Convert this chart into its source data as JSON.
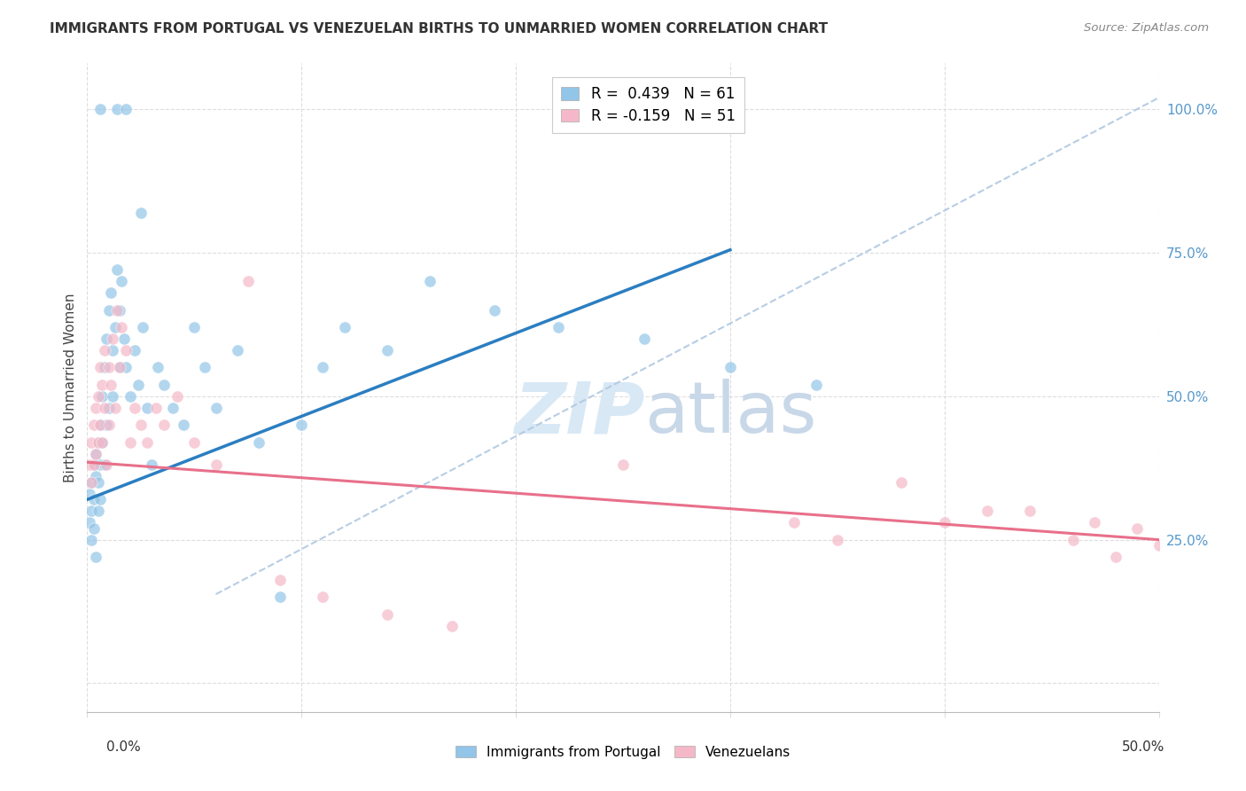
{
  "title": "IMMIGRANTS FROM PORTUGAL VS VENEZUELAN BIRTHS TO UNMARRIED WOMEN CORRELATION CHART",
  "source": "Source: ZipAtlas.com",
  "ylabel": "Births to Unmarried Women",
  "legend_label1": "Immigrants from Portugal",
  "legend_label2": "Venezuelans",
  "R1": 0.439,
  "N1": 61,
  "R2": -0.159,
  "N2": 51,
  "blue_color": "#92C5E8",
  "pink_color": "#F5B8C8",
  "blue_line_color": "#2B7EC1",
  "pink_line_color": "#E8708A",
  "ref_line_color": "#B0C8E0",
  "watermark_color": "#D8E8F5",
  "blue_scatter_x": [
    0.001,
    0.001,
    0.002,
    0.002,
    0.002,
    0.003,
    0.003,
    0.003,
    0.004,
    0.004,
    0.004,
    0.005,
    0.005,
    0.005,
    0.006,
    0.006,
    0.006,
    0.007,
    0.007,
    0.008,
    0.008,
    0.009,
    0.009,
    0.01,
    0.01,
    0.011,
    0.012,
    0.012,
    0.013,
    0.014,
    0.015,
    0.015,
    0.016,
    0.017,
    0.018,
    0.02,
    0.022,
    0.024,
    0.026,
    0.028,
    0.03,
    0.033,
    0.036,
    0.04,
    0.045,
    0.05,
    0.055,
    0.06,
    0.07,
    0.08,
    0.09,
    0.1,
    0.11,
    0.12,
    0.14,
    0.16,
    0.19,
    0.22,
    0.26,
    0.3,
    0.34
  ],
  "blue_scatter_y": [
    0.33,
    0.28,
    0.35,
    0.3,
    0.25,
    0.38,
    0.32,
    0.27,
    0.4,
    0.36,
    0.22,
    0.42,
    0.35,
    0.3,
    0.45,
    0.38,
    0.32,
    0.5,
    0.42,
    0.55,
    0.38,
    0.6,
    0.45,
    0.65,
    0.48,
    0.68,
    0.58,
    0.5,
    0.62,
    0.72,
    0.65,
    0.55,
    0.7,
    0.6,
    0.55,
    0.5,
    0.58,
    0.52,
    0.62,
    0.48,
    0.38,
    0.55,
    0.52,
    0.48,
    0.45,
    0.62,
    0.55,
    0.48,
    0.58,
    0.42,
    0.15,
    0.45,
    0.55,
    0.62,
    0.58,
    0.7,
    0.65,
    0.62,
    0.6,
    0.55,
    0.52
  ],
  "blue_scatter_y_outliers": [
    [
      0.006,
      1.0
    ],
    [
      0.014,
      1.0
    ],
    [
      0.018,
      1.0
    ],
    [
      0.025,
      0.82
    ]
  ],
  "pink_scatter_x": [
    0.001,
    0.002,
    0.002,
    0.003,
    0.003,
    0.004,
    0.004,
    0.005,
    0.005,
    0.006,
    0.006,
    0.007,
    0.007,
    0.008,
    0.008,
    0.009,
    0.01,
    0.01,
    0.011,
    0.012,
    0.013,
    0.014,
    0.015,
    0.016,
    0.018,
    0.02,
    0.022,
    0.025,
    0.028,
    0.032,
    0.036,
    0.042,
    0.05,
    0.06,
    0.075,
    0.09,
    0.11,
    0.14,
    0.17,
    0.25,
    0.33,
    0.4,
    0.44,
    0.46,
    0.47,
    0.48,
    0.49,
    0.5,
    0.42,
    0.38,
    0.35
  ],
  "pink_scatter_y": [
    0.38,
    0.42,
    0.35,
    0.45,
    0.38,
    0.48,
    0.4,
    0.5,
    0.42,
    0.55,
    0.45,
    0.52,
    0.42,
    0.58,
    0.48,
    0.38,
    0.55,
    0.45,
    0.52,
    0.6,
    0.48,
    0.65,
    0.55,
    0.62,
    0.58,
    0.42,
    0.48,
    0.45,
    0.42,
    0.48,
    0.45,
    0.5,
    0.42,
    0.38,
    0.7,
    0.18,
    0.15,
    0.12,
    0.1,
    0.38,
    0.28,
    0.28,
    0.3,
    0.25,
    0.28,
    0.22,
    0.27,
    0.24,
    0.3,
    0.35,
    0.25
  ],
  "blue_line_x0": 0.0,
  "blue_line_y0": 0.32,
  "blue_line_x1": 0.3,
  "blue_line_y1": 0.755,
  "pink_line_x0": 0.0,
  "pink_line_y0": 0.385,
  "pink_line_x1": 0.5,
  "pink_line_y1": 0.25,
  "ref_line_x0": 0.06,
  "ref_line_y0": 0.155,
  "ref_line_x1": 0.5,
  "ref_line_y1": 1.02,
  "xlim": [
    0.0,
    0.5
  ],
  "ylim": [
    -0.05,
    1.08
  ],
  "yticks": [
    0.0,
    0.25,
    0.5,
    0.75,
    1.0
  ],
  "ytick_labels_right": [
    "",
    "25.0%",
    "50.0%",
    "75.0%",
    "100.0%"
  ],
  "xticks": [
    0.0,
    0.1,
    0.2,
    0.3,
    0.4,
    0.5
  ],
  "grid_color": "#DDDDDD",
  "scatter_size": 90,
  "scatter_alpha": 0.7
}
